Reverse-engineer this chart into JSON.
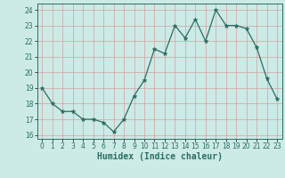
{
  "x": [
    0,
    1,
    2,
    3,
    4,
    5,
    6,
    7,
    8,
    9,
    10,
    11,
    12,
    13,
    14,
    15,
    16,
    17,
    18,
    19,
    20,
    21,
    22,
    23
  ],
  "y": [
    19,
    18,
    17.5,
    17.5,
    17,
    17,
    16.8,
    16.2,
    17,
    18.5,
    19.5,
    21.5,
    21.2,
    23,
    22.2,
    23.4,
    22,
    24,
    23,
    23,
    22.8,
    21.6,
    19.6,
    18.3
  ],
  "line_color": "#2a6e62",
  "marker": "*",
  "marker_size": 3.5,
  "bg_color": "#cceae6",
  "grid_color_v": "#d4a0a0",
  "grid_color_h": "#d4a0a0",
  "xlabel": "Humidex (Indice chaleur)",
  "xlim": [
    -0.5,
    23.5
  ],
  "ylim": [
    15.75,
    24.4
  ],
  "yticks": [
    16,
    17,
    18,
    19,
    20,
    21,
    22,
    23,
    24
  ],
  "xticks": [
    0,
    1,
    2,
    3,
    4,
    5,
    6,
    7,
    8,
    9,
    10,
    11,
    12,
    13,
    14,
    15,
    16,
    17,
    18,
    19,
    20,
    21,
    22,
    23
  ],
  "xlabel_fontsize": 7,
  "tick_fontsize": 5.5
}
